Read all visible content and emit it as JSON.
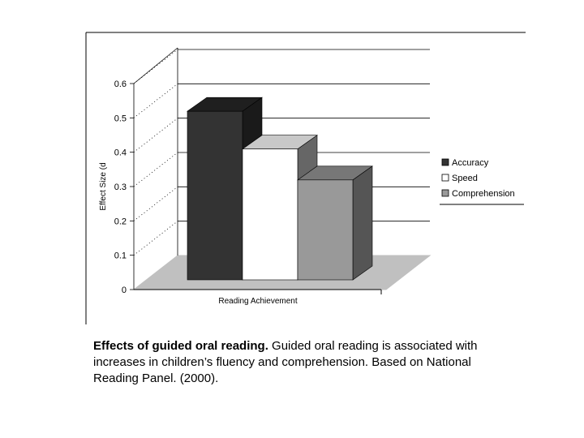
{
  "chart_data": {
    "type": "bar",
    "categories": [
      "Reading Achievement"
    ],
    "series": [
      {
        "name": "Accuracy",
        "values": [
          0.55
        ],
        "color": "#333333"
      },
      {
        "name": "Speed",
        "values": [
          0.44
        ],
        "color": "#ffffff"
      },
      {
        "name": "Comprehension",
        "values": [
          0.35
        ],
        "color": "#999999"
      }
    ],
    "xlabel": "Reading Achievement",
    "ylabel": "Effect Size (d",
    "ylim": [
      0,
      0.6
    ],
    "yticks": [
      "0",
      "0.1",
      "0.2",
      "0.3",
      "0.4",
      "0.5",
      "0.6"
    ],
    "legend_position": "right",
    "grid": true,
    "style": "3d"
  },
  "caption": {
    "title": "Effects of guided oral reading.",
    "text": " Guided oral reading is associated with increases in children’s fluency and comprehension. Based on National Reading Panel. (2000)."
  }
}
